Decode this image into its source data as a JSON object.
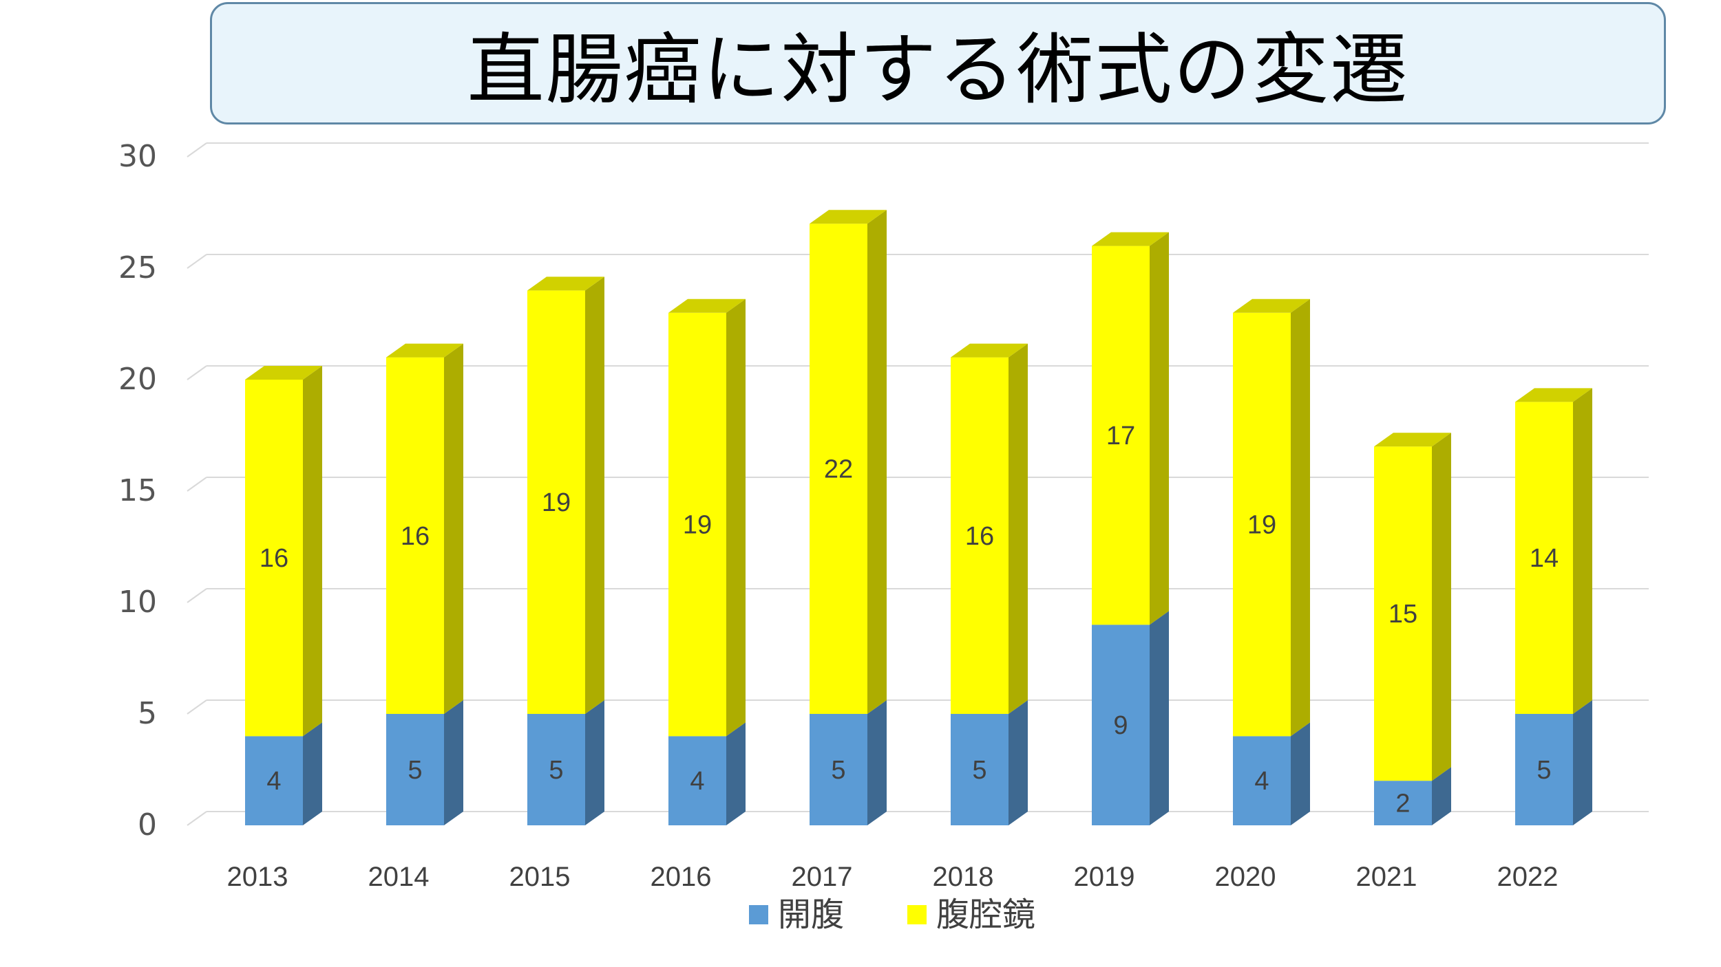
{
  "chart_data": {
    "type": "bar",
    "stacked": true,
    "style": "3d-column",
    "title": "直腸癌に対する術式の変遷",
    "categories": [
      "2013",
      "2014",
      "2015",
      "2016",
      "2017",
      "2018",
      "2019",
      "2020",
      "2021",
      "2022"
    ],
    "series": [
      {
        "name": "開腹",
        "color": "#5b9bd5",
        "values": [
          4,
          5,
          5,
          4,
          5,
          5,
          9,
          4,
          2,
          5
        ]
      },
      {
        "name": "腹腔鏡",
        "color": "#ffff00",
        "values": [
          16,
          16,
          19,
          19,
          22,
          16,
          17,
          19,
          15,
          14
        ]
      }
    ],
    "ylim": [
      0,
      30
    ],
    "yticks": [
      0,
      5,
      10,
      15,
      20,
      25,
      30
    ],
    "xlabel": "",
    "ylabel": "",
    "grid": true,
    "data_labels": true,
    "legend": "bottom",
    "title_box": {
      "background": "#e8f4fb",
      "border": "#5f88a6"
    }
  }
}
